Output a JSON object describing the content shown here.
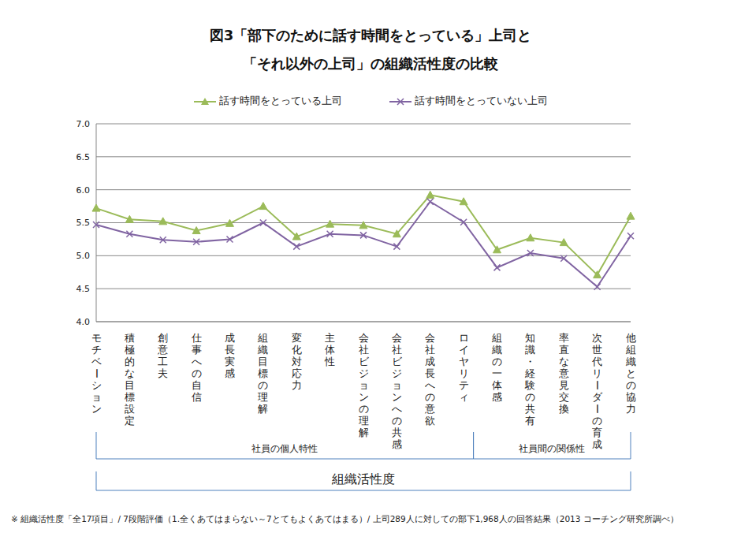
{
  "chart_data": {
    "type": "line",
    "title": [
      "図3「部下のために話す時間をとっている」上司と",
      "「それ以外の上司」の組織活性度の比較"
    ],
    "categories": [
      "モチベーション",
      "積極的な目標設定",
      "創意工夫",
      "仕事への自信",
      "成長実感",
      "組織目標の理解",
      "変化対応力",
      "主体性",
      "会社ビジョンの理解",
      "会社ビジョンへの共感",
      "会社成長への意欲",
      "ロイヤリティ",
      "組織の一体感",
      "知識・経験の共有",
      "率直な意見交換",
      "次世代リーダーの育成",
      "他組織との協力"
    ],
    "series": [
      {
        "name": "話す時間をとっている上司",
        "color": "#9bbb59",
        "marker": "triangle",
        "values": [
          5.72,
          5.55,
          5.52,
          5.38,
          5.49,
          5.75,
          5.29,
          5.48,
          5.46,
          5.33,
          5.92,
          5.82,
          5.09,
          5.27,
          5.2,
          4.71,
          5.6
        ]
      },
      {
        "name": "話す時間をとっていない上司",
        "color": "#8064a2",
        "marker": "cross",
        "values": [
          5.47,
          5.33,
          5.24,
          5.21,
          5.25,
          5.5,
          5.14,
          5.33,
          5.31,
          5.14,
          5.82,
          5.51,
          4.82,
          5.04,
          4.96,
          4.53,
          5.3
        ]
      }
    ],
    "ylim": [
      4,
      7
    ],
    "yticks": [
      {
        "value": 4,
        "label": "4.0"
      },
      {
        "value": 4.5,
        "label": "4.5"
      },
      {
        "value": 5,
        "label": "5.0"
      },
      {
        "value": 5.5,
        "label": "5.5"
      },
      {
        "value": 6,
        "label": "6.0"
      },
      {
        "value": 6.5,
        "label": "6.5"
      },
      {
        "value": 7,
        "label": "7.0"
      }
    ],
    "grid": true,
    "legend": "top",
    "category_groups": [
      {
        "label": "社員の個人特性",
        "from": "モチベーション",
        "to": "ロイヤリティ"
      },
      {
        "label": "社員間の関係性",
        "from": "組織の一体感",
        "to": "他組織との協力"
      }
    ],
    "outer_group": {
      "label": "組織活性度",
      "from": "モチベーション",
      "to": "他組織との協力"
    },
    "note": "※ 組織活性度「全17項目」/ 7段階評価（1.全くあてはまらない～7とてもよくあてはまる）/ 上司289人に対しての部下1,968人の回答結果（2013 コーチング研究所調べ）"
  }
}
